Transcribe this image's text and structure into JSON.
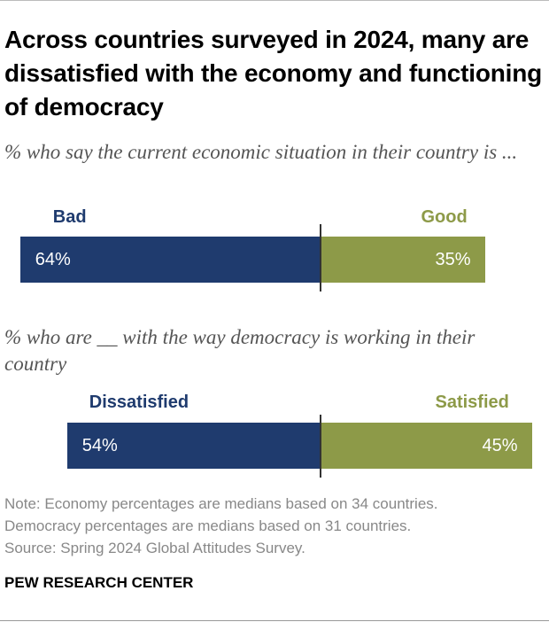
{
  "title": "Across countries surveyed in 2024, many are dissatisfied with the economy and functioning of democracy",
  "colors": {
    "negative": "#1f3b6e",
    "positive": "#8d9a48"
  },
  "chart_data": [
    {
      "type": "bar",
      "subtitle": "% who say the current economic situation in their country is ...",
      "series": [
        {
          "name": "Bad",
          "value": 64,
          "label": "64%"
        },
        {
          "name": "Good",
          "value": 35,
          "label": "35%"
        }
      ]
    },
    {
      "type": "bar",
      "subtitle": "% who are __ with the way democracy is working in their country",
      "series": [
        {
          "name": "Dissatisfied",
          "value": 54,
          "label": "54%"
        },
        {
          "name": "Satisfied",
          "value": 45,
          "label": "45%"
        }
      ]
    }
  ],
  "note_lines": [
    "Note: Economy percentages are medians based on 34 countries.",
    "Democracy percentages are medians based on 31 countries.",
    "Source: Spring 2024 Global Attitudes Survey."
  ],
  "brand": "PEW RESEARCH CENTER"
}
